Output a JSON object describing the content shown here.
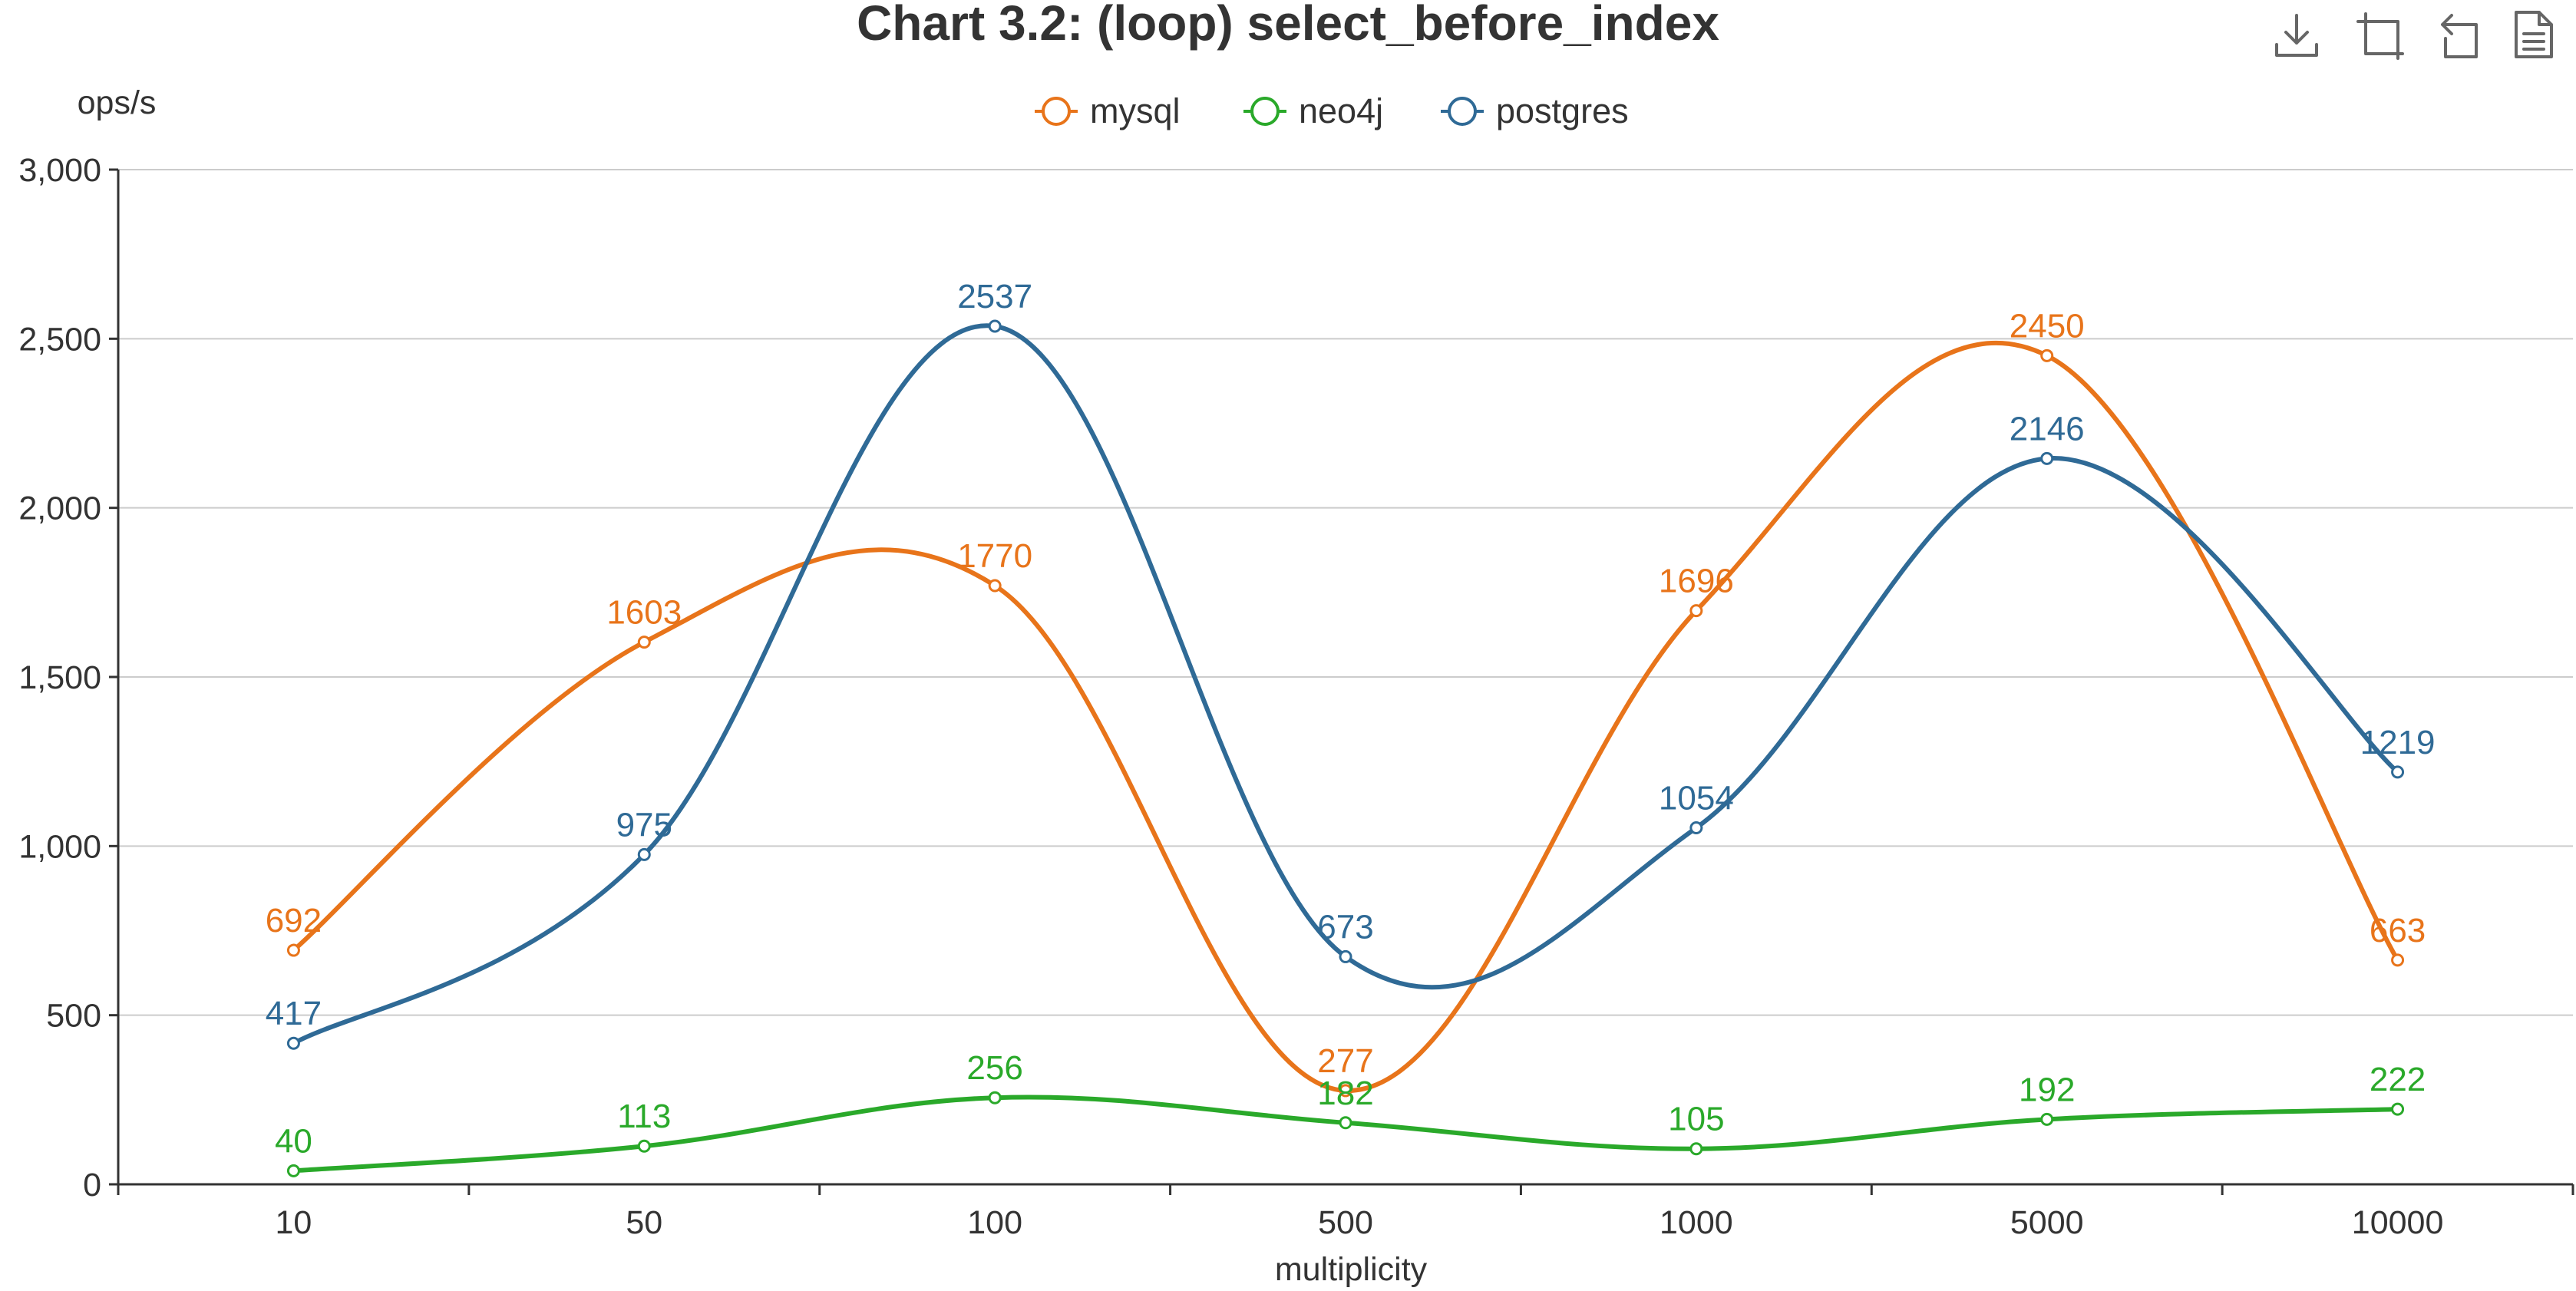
{
  "chart_data": {
    "type": "line",
    "title": "Chart 3.2: (loop) select_before_index",
    "xlabel": "multiplicity",
    "ylabel": "ops/s",
    "categories": [
      "10",
      "50",
      "100",
      "500",
      "1000",
      "5000",
      "10000"
    ],
    "ylim": [
      0,
      3000
    ],
    "yticks": [
      0,
      500,
      1000,
      1500,
      2000,
      2500,
      3000
    ],
    "ytick_labels": [
      "0",
      "500",
      "1,000",
      "1,500",
      "2,000",
      "2,500",
      "3,000"
    ],
    "smooth": true,
    "grid": true,
    "legend_position": "top-center",
    "series": [
      {
        "name": "mysql",
        "color": "#e8741a",
        "values": [
          692,
          1603,
          1770,
          277,
          1696,
          2450,
          663
        ]
      },
      {
        "name": "neo4j",
        "color": "#2aa92a",
        "values": [
          40,
          113,
          256,
          182,
          105,
          192,
          222
        ]
      },
      {
        "name": "postgres",
        "color": "#2f6a96",
        "values": [
          417,
          975,
          2537,
          673,
          1054,
          2146,
          1219
        ]
      }
    ]
  },
  "toolbox": {
    "icons": [
      "download-icon",
      "data-zoom-icon",
      "restore-icon",
      "data-view-icon"
    ]
  }
}
